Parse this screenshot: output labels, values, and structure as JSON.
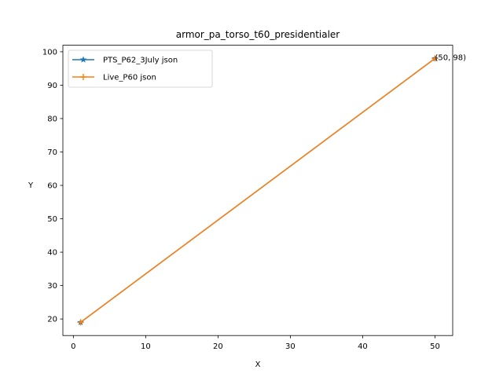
{
  "chart_data": {
    "type": "line",
    "title": "armor_pa_torso_t60_presidentialer",
    "xlabel": "X",
    "ylabel": "Y",
    "xlim": [
      -1.45,
      52.45
    ],
    "ylim": [
      15.05,
      101.95
    ],
    "xticks": [
      0,
      10,
      20,
      30,
      40,
      50
    ],
    "yticks": [
      20,
      30,
      40,
      50,
      60,
      70,
      80,
      90,
      100
    ],
    "grid": false,
    "legend_position": "upper-left",
    "series": [
      {
        "name": "PTS_P62_3July json",
        "color": "#1f77b4",
        "marker": "star",
        "x": [
          1,
          50
        ],
        "y": [
          19,
          98
        ]
      },
      {
        "name": "Live_P60 json",
        "color": "#ff7f0e",
        "marker": "plus",
        "x": [
          1,
          50
        ],
        "y": [
          19,
          98
        ]
      }
    ],
    "annotations": [
      {
        "text": "(50, 98)",
        "x": 50,
        "y": 98
      }
    ]
  }
}
